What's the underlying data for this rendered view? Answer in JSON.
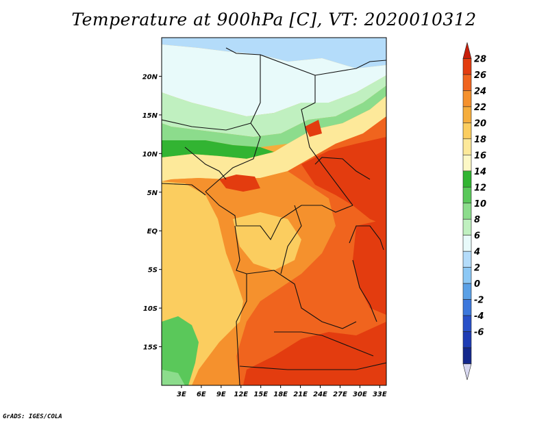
{
  "title": "Temperature at 900hPa [C], VT: 2020010312",
  "credit": "GrADS: IGES/COLA",
  "map": {
    "variable": "Temperature",
    "level": "900hPa",
    "units": "C",
    "valid_time": "2020010312",
    "lon_range": [
      0,
      34
    ],
    "lat_range": [
      -20,
      25
    ],
    "lat_ticks": [
      {
        "value": 20,
        "label": "20N"
      },
      {
        "value": 15,
        "label": "15N"
      },
      {
        "value": 10,
        "label": "10N"
      },
      {
        "value": 5,
        "label": "5N"
      },
      {
        "value": 0,
        "label": "EQ"
      },
      {
        "value": -5,
        "label": "5S"
      },
      {
        "value": -10,
        "label": "10S"
      },
      {
        "value": -15,
        "label": "15S"
      }
    ],
    "lon_ticks": [
      {
        "value": 3,
        "label": "3E"
      },
      {
        "value": 6,
        "label": "6E"
      },
      {
        "value": 9,
        "label": "9E"
      },
      {
        "value": 12,
        "label": "12E"
      },
      {
        "value": 15,
        "label": "15E"
      },
      {
        "value": 18,
        "label": "18E"
      },
      {
        "value": 21,
        "label": "21E"
      },
      {
        "value": 24,
        "label": "24E"
      },
      {
        "value": 27,
        "label": "27E"
      },
      {
        "value": 30,
        "label": "30E"
      },
      {
        "value": 33,
        "label": "33E"
      }
    ]
  },
  "colorbar": {
    "levels": [
      "28",
      "26",
      "24",
      "22",
      "20",
      "18",
      "16",
      "14",
      "12",
      "10",
      "8",
      "6",
      "4",
      "2",
      "0",
      "-2",
      "-4",
      "-6"
    ],
    "colors_top_to_bottom": [
      "#c81e0a",
      "#e33c0f",
      "#f0641e",
      "#f5912d",
      "#f5ad3c",
      "#fbcd5f",
      "#fde99a",
      "#fdf8c6",
      "#32b432",
      "#5ac85a",
      "#8cdc8c",
      "#c0f0c0",
      "#e8fafa",
      "#b4dcfa",
      "#8cc8f5",
      "#5aa0e6",
      "#3c78dc",
      "#2850c8",
      "#1e3cb4",
      "#14288c",
      "#d8d8f0"
    ]
  }
}
